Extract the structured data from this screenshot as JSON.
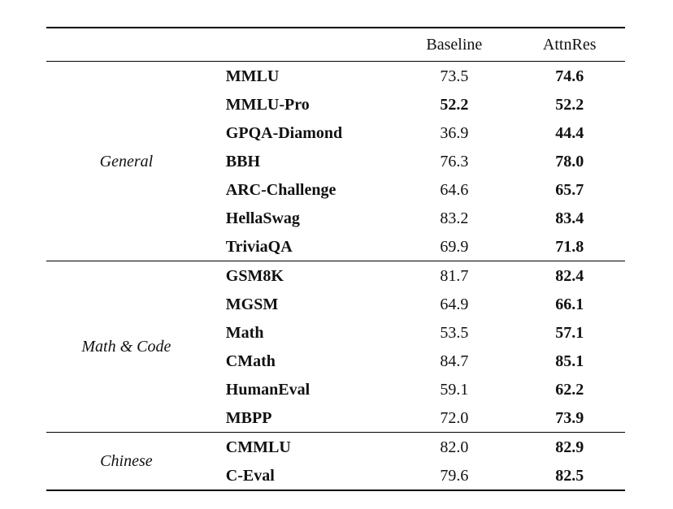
{
  "table": {
    "header": {
      "baseline": "Baseline",
      "attnres": "AttnRes"
    },
    "groups": [
      {
        "label": "General",
        "rows": [
          {
            "name": "MMLU",
            "baseline": "73.5",
            "attnres": "74.6"
          },
          {
            "name": "MMLU-Pro",
            "baseline": "52.2",
            "attnres": "52.2"
          },
          {
            "name": "GPQA-Diamond",
            "baseline": "36.9",
            "attnres": "44.4"
          },
          {
            "name": "BBH",
            "baseline": "76.3",
            "attnres": "78.0"
          },
          {
            "name": "ARC-Challenge",
            "baseline": "64.6",
            "attnres": "65.7"
          },
          {
            "name": "HellaSwag",
            "baseline": "83.2",
            "attnres": "83.4"
          },
          {
            "name": "TriviaQA",
            "baseline": "69.9",
            "attnres": "71.8"
          }
        ]
      },
      {
        "label": "Math & Code",
        "rows": [
          {
            "name": "GSM8K",
            "baseline": "81.7",
            "attnres": "82.4"
          },
          {
            "name": "MGSM",
            "baseline": "64.9",
            "attnres": "66.1"
          },
          {
            "name": "Math",
            "baseline": "53.5",
            "attnres": "57.1"
          },
          {
            "name": "CMath",
            "baseline": "84.7",
            "attnres": "85.1"
          },
          {
            "name": "HumanEval",
            "baseline": "59.1",
            "attnres": "62.2"
          },
          {
            "name": "MBPP",
            "baseline": "72.0",
            "attnres": "73.9"
          }
        ]
      },
      {
        "label": "Chinese",
        "rows": [
          {
            "name": "CMMLU",
            "baseline": "82.0",
            "attnres": "82.9"
          },
          {
            "name": "C-Eval",
            "baseline": "79.6",
            "attnres": "82.5"
          }
        ]
      }
    ]
  }
}
